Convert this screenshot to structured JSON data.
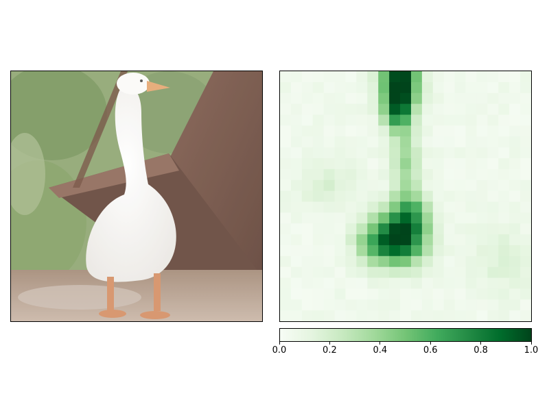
{
  "photo": {
    "subject": "white goose",
    "colors": {
      "sky_ground": "#c9b6a6",
      "foliage": "#7f9a5c",
      "rust": "#6b4636",
      "goose": "#f8f6f2",
      "beak": "#e4a36b"
    }
  },
  "chart_data": {
    "type": "heatmap",
    "colormap": "Greens",
    "grid": [
      23,
      23
    ],
    "vmin": 0.0,
    "vmax": 1.0,
    "blobs": [
      {
        "row": 0.2,
        "col": 10.5,
        "amp": 0.95,
        "sr": 2.0,
        "sc": 1.2
      },
      {
        "row": 3.0,
        "col": 10.3,
        "amp": 0.55,
        "sr": 1.5,
        "sc": 0.9
      },
      {
        "row": 8.0,
        "col": 11.0,
        "amp": 0.32,
        "sr": 2.5,
        "sc": 0.9
      },
      {
        "row": 15.0,
        "col": 10.2,
        "amp": 1.0,
        "sr": 1.6,
        "sc": 1.8
      },
      {
        "row": 12.5,
        "col": 11.5,
        "amp": 0.45,
        "sr": 1.3,
        "sc": 1.2
      },
      {
        "row": 15.5,
        "col": 7.5,
        "amp": 0.18,
        "sr": 1.2,
        "sc": 1.0
      },
      {
        "row": 10.0,
        "col": 4.0,
        "amp": 0.12,
        "sr": 1.5,
        "sc": 2.0
      },
      {
        "row": 17.0,
        "col": 20.0,
        "amp": 0.12,
        "sr": 2.0,
        "sc": 2.0
      }
    ],
    "colorbar": {
      "ticks": [
        "0.0",
        "0.2",
        "0.4",
        "0.6",
        "0.8",
        "1.0"
      ],
      "tick_values": [
        0.0,
        0.2,
        0.4,
        0.6,
        0.8,
        1.0
      ]
    }
  }
}
